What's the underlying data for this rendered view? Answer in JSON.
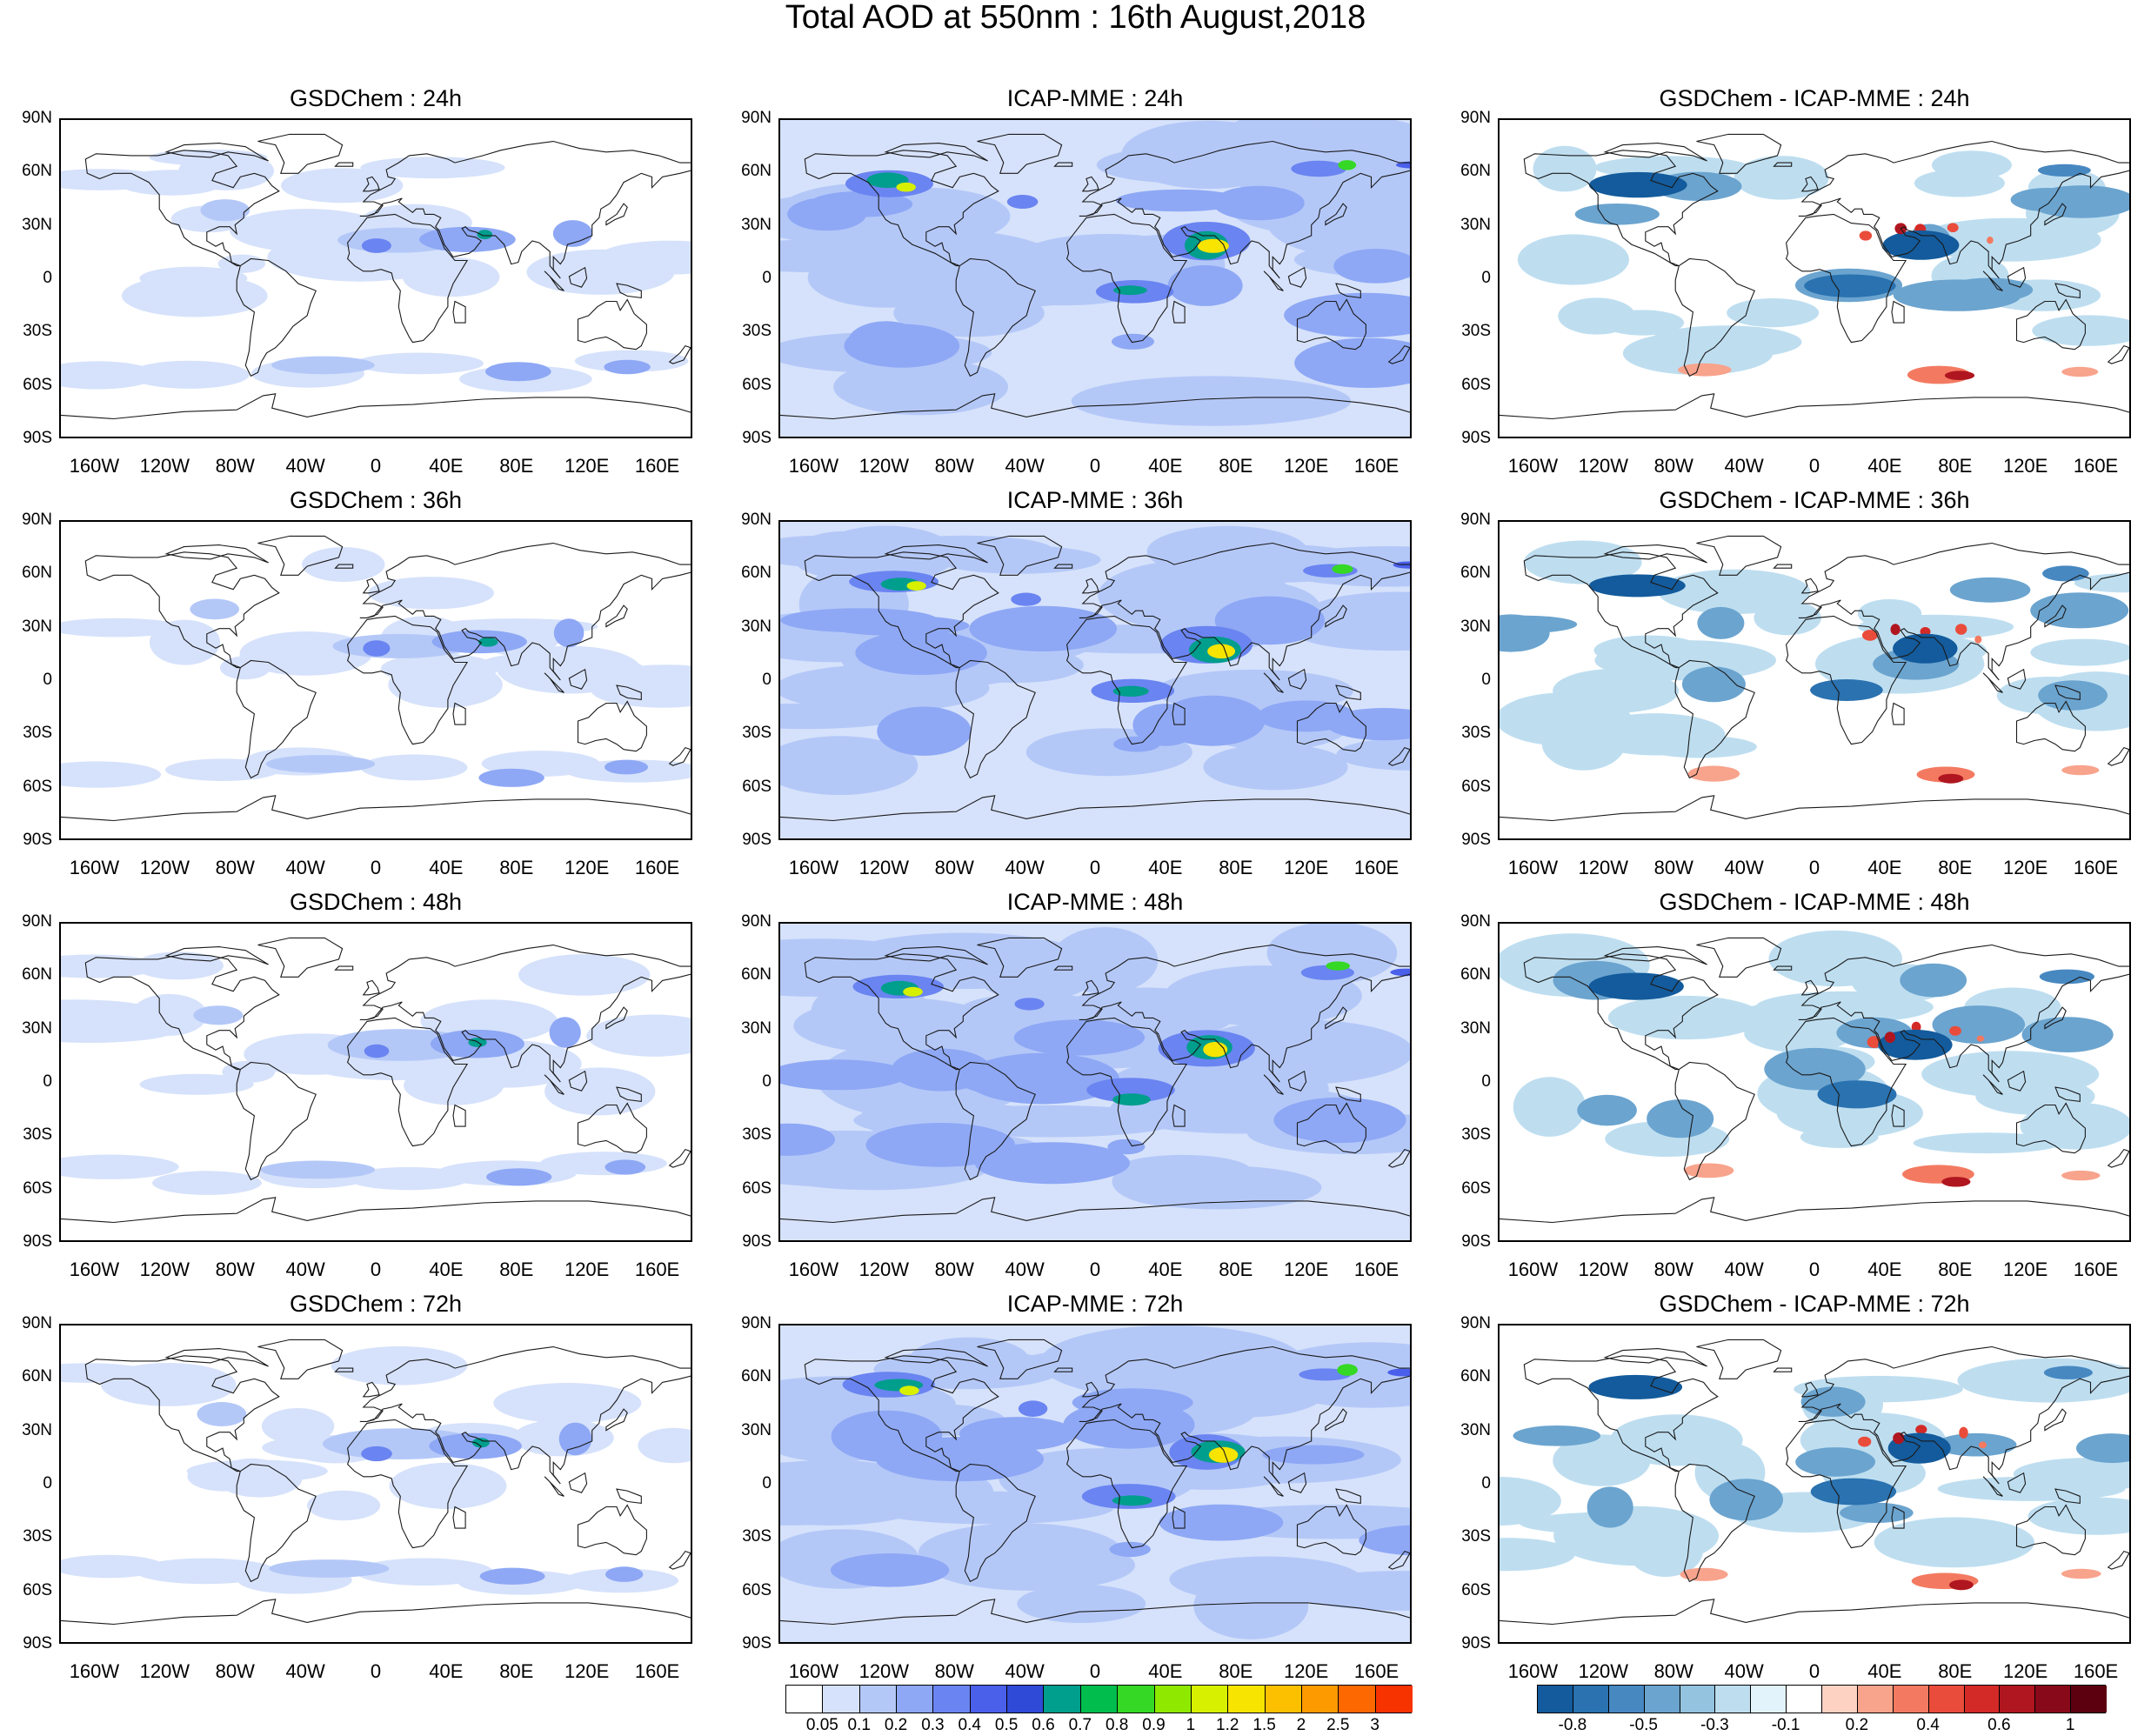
{
  "title": "Total AOD at 550nm : 16th August,2018",
  "lat_labels": [
    "90N",
    "60N",
    "30N",
    "0",
    "30S",
    "60S",
    "90S"
  ],
  "lon_labels": [
    "160W",
    "120W",
    "80W",
    "40W",
    "0",
    "40E",
    "80E",
    "120E",
    "160E"
  ],
  "panels": [
    {
      "title": "GSDChem : 24h",
      "kind": "aod",
      "seed": 11
    },
    {
      "title": "ICAP-MME : 24h",
      "kind": "aod_icap",
      "seed": 12
    },
    {
      "title": "GSDChem - ICAP-MME : 24h",
      "kind": "diff",
      "seed": 13
    },
    {
      "title": "GSDChem : 36h",
      "kind": "aod",
      "seed": 21
    },
    {
      "title": "ICAP-MME : 36h",
      "kind": "aod_icap",
      "seed": 22
    },
    {
      "title": "GSDChem - ICAP-MME : 36h",
      "kind": "diff",
      "seed": 23
    },
    {
      "title": "GSDChem : 48h",
      "kind": "aod",
      "seed": 31
    },
    {
      "title": "ICAP-MME : 48h",
      "kind": "aod_icap",
      "seed": 32
    },
    {
      "title": "GSDChem - ICAP-MME : 48h",
      "kind": "diff",
      "seed": 33
    },
    {
      "title": "GSDChem : 72h",
      "kind": "aod",
      "seed": 41
    },
    {
      "title": "ICAP-MME : 72h",
      "kind": "aod_icap",
      "seed": 42
    },
    {
      "title": "GSDChem - ICAP-MME : 72h",
      "kind": "diff",
      "seed": 43
    }
  ],
  "aod_colorbar": {
    "colors": [
      "#ffffff",
      "#d6e2fb",
      "#b4c8f8",
      "#8ea8f5",
      "#6a84f1",
      "#4a5fea",
      "#2f4ad6",
      "#009e8c",
      "#00bd4e",
      "#35d824",
      "#8ee800",
      "#d6f000",
      "#f7e400",
      "#fdc000",
      "#fd9a00",
      "#fd6800",
      "#f73300"
    ],
    "labels": [
      "0.05",
      "0.1",
      "0.2",
      "0.3",
      "0.4",
      "0.5",
      "0.6",
      "0.7",
      "0.8",
      "0.9",
      "1",
      "1.2",
      "1.5",
      "2",
      "2.5",
      "3"
    ]
  },
  "diff_colorbar": {
    "colors": [
      "#135b9c",
      "#2a72b0",
      "#4788c1",
      "#6ba4cf",
      "#93c3de",
      "#bedef0",
      "#e3f3fb",
      "#ffffff",
      "#fdd2c3",
      "#f8a38c",
      "#f37a61",
      "#ea4c3b",
      "#d32a27",
      "#b0161f",
      "#88091a",
      "#5c0010"
    ],
    "labels": [
      "-0.8",
      "-0.5",
      "-0.3",
      "-0.1",
      "0.2",
      "0.4",
      "0.6",
      "1"
    ]
  }
}
